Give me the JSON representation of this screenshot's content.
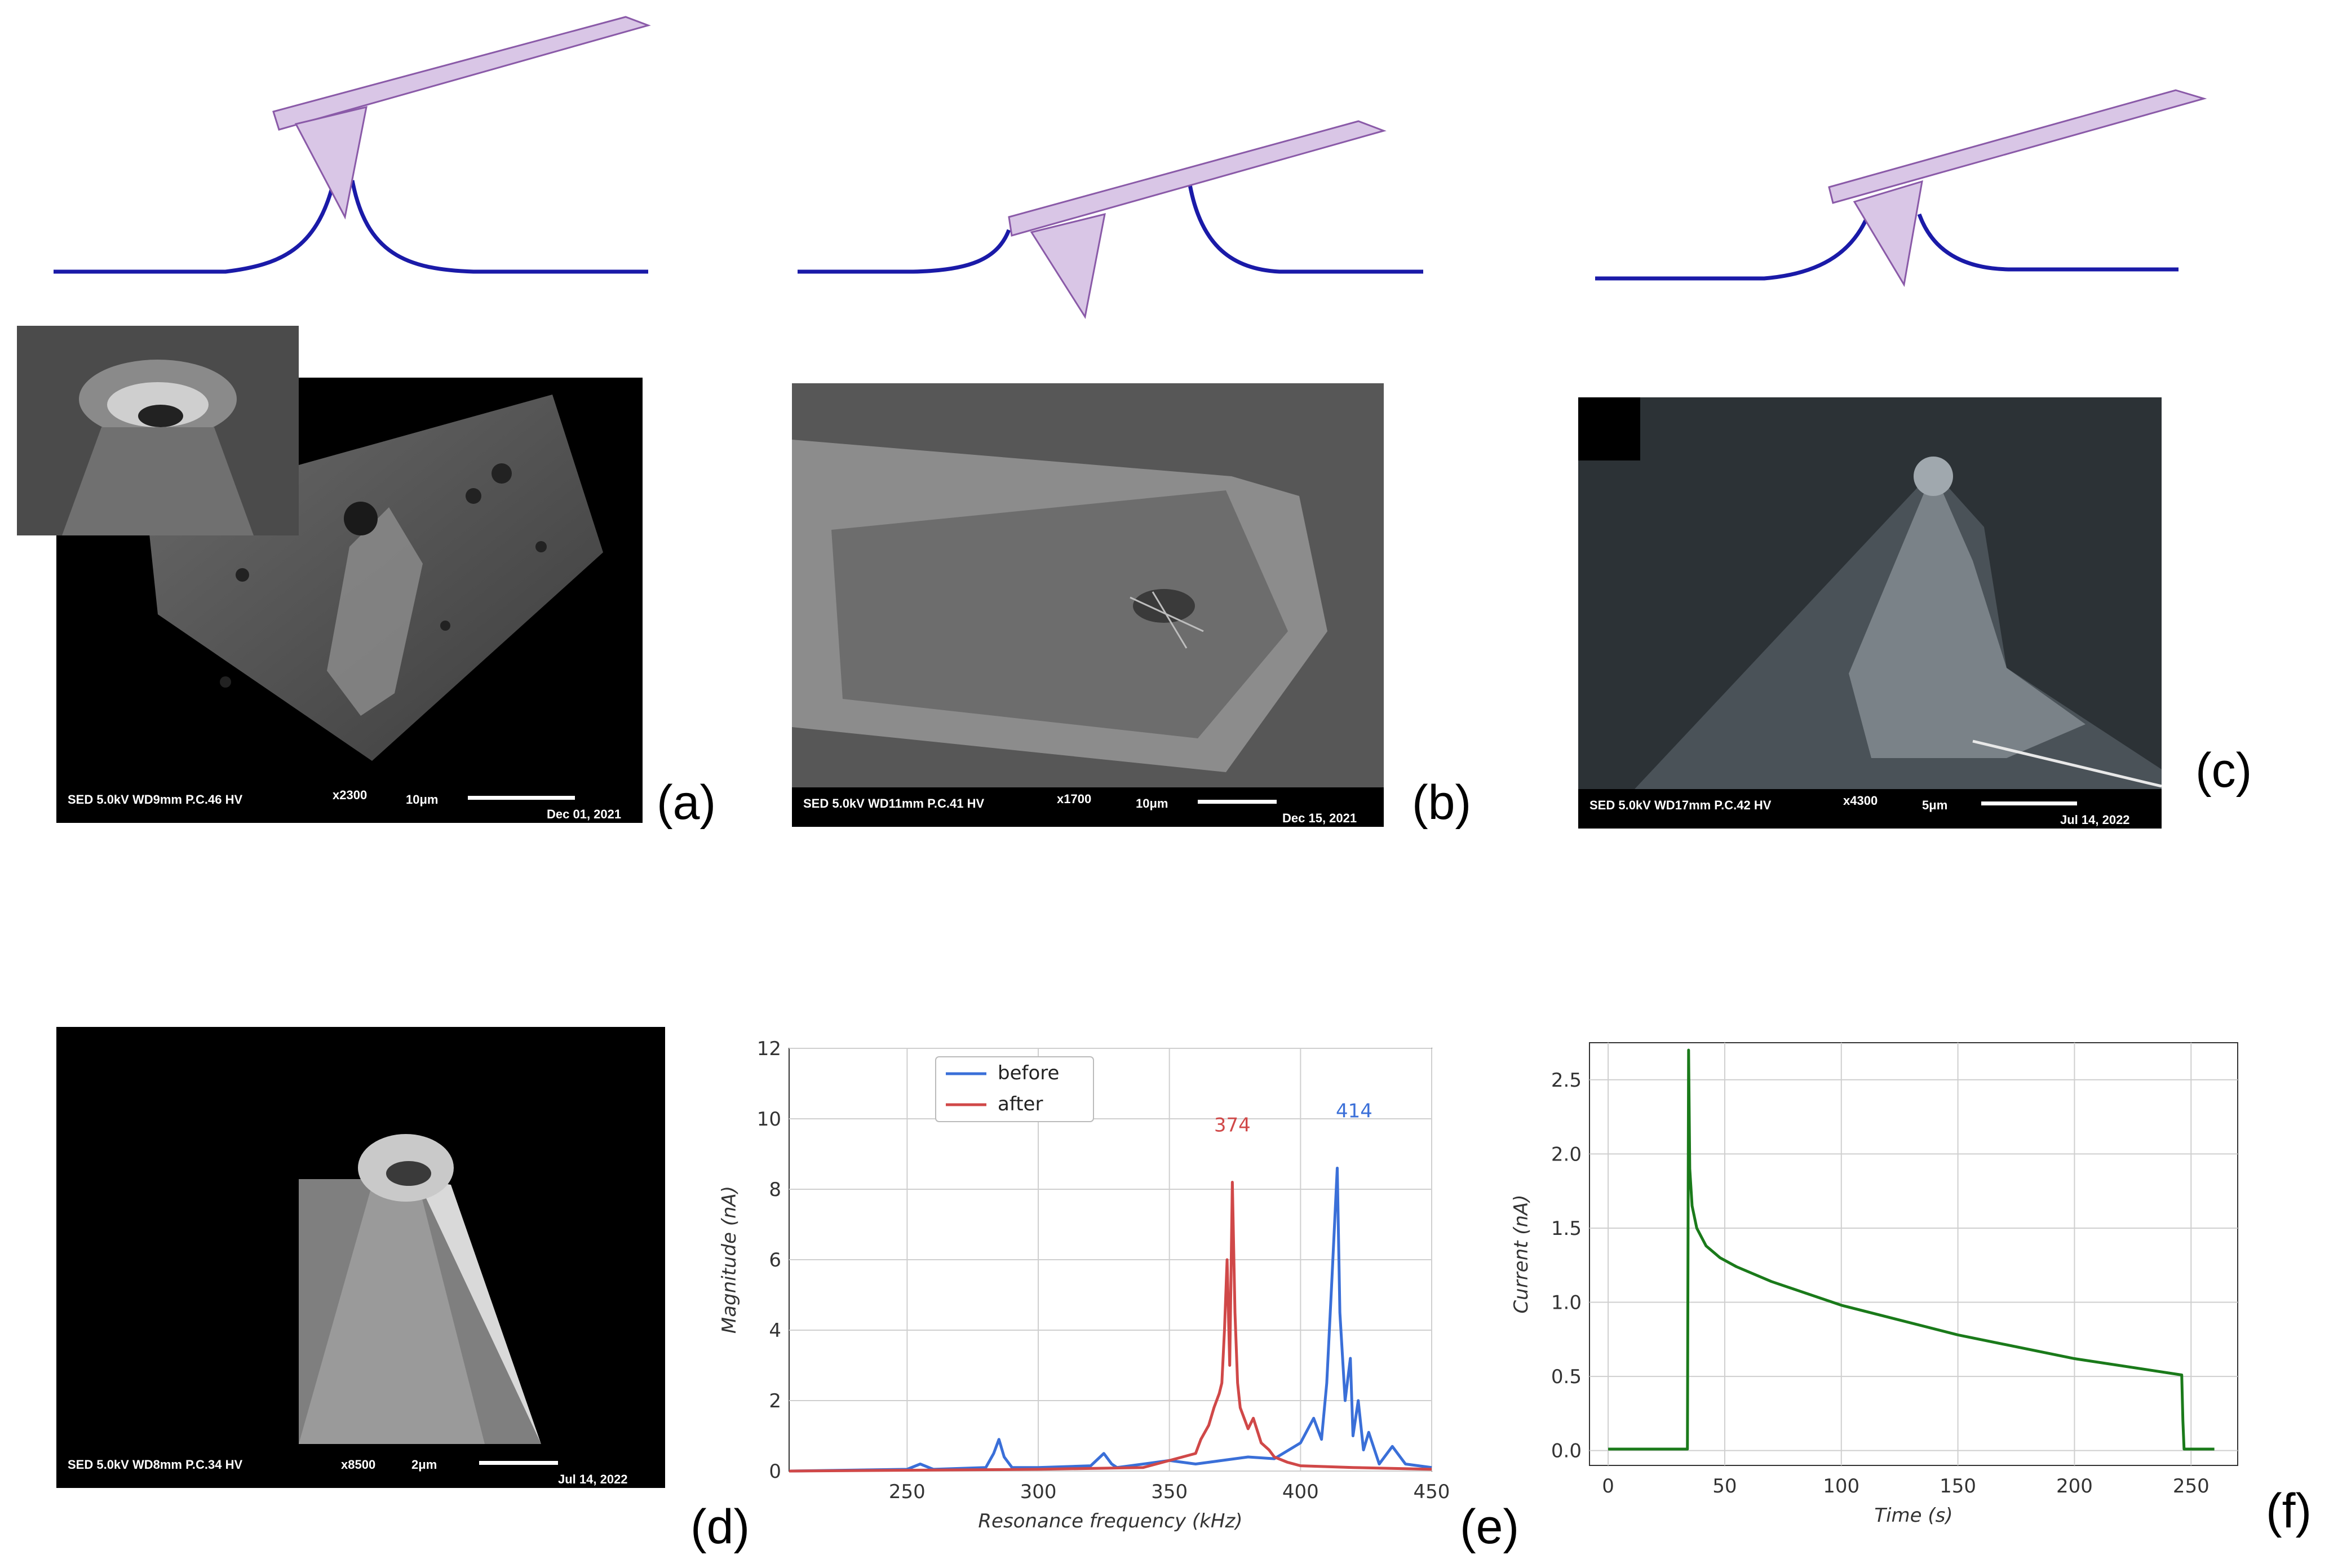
{
  "figure": {
    "panel_labels": [
      "(a)",
      "(b)",
      "(c)",
      "(d)",
      "(e)",
      "(f)"
    ],
    "sem_images": [
      {
        "info": "SED 5.0kV  WD9mm  P.C.46  HV",
        "mag": "x2300",
        "scale": "10μm",
        "date": "Dec 01, 2021"
      },
      {
        "info": "SED 5.0kV  WD11mm P.C.41  HV",
        "mag": "x1700",
        "scale": "10μm",
        "date": "Dec 15, 2021"
      },
      {
        "info": "SED 5.0kV  WD17mm P.C.42  HV",
        "mag": "x4300",
        "scale": "5μm",
        "date": "Jul 14, 2022"
      },
      {
        "info": "SED 5.0kV  WD8mm  P.C.34  HV",
        "mag": "x8500",
        "scale": "2μm",
        "date": "Jul 14, 2022"
      }
    ],
    "colors": {
      "cantilever": "#d9c6e6",
      "surface_line": "#1a1aa8",
      "before": "#3a6fd8",
      "after": "#d04848",
      "current": "#1a7a1a"
    }
  },
  "chart_data": [
    {
      "type": "line",
      "xlabel": "Resonance frequency (kHz)",
      "ylabel": "Magnitude (nA)",
      "xlim": [
        205,
        450
      ],
      "ylim": [
        0,
        12
      ],
      "x_ticks": [
        250,
        300,
        350,
        400,
        450
      ],
      "y_ticks": [
        0,
        2,
        4,
        6,
        8,
        10,
        12
      ],
      "grid": true,
      "legend": "top-left",
      "series": [
        {
          "name": "before",
          "peak_label": "414",
          "x": [
            205,
            250,
            255,
            260,
            280,
            283,
            285,
            287,
            290,
            300,
            320,
            325,
            328,
            330,
            350,
            360,
            370,
            380,
            390,
            400,
            405,
            408,
            410,
            412,
            414,
            415,
            417,
            419,
            420,
            422,
            424,
            426,
            430,
            435,
            440,
            450
          ],
          "y": [
            0,
            0.05,
            0.2,
            0.05,
            0.1,
            0.5,
            0.9,
            0.4,
            0.1,
            0.1,
            0.15,
            0.5,
            0.2,
            0.1,
            0.3,
            0.2,
            0.3,
            0.4,
            0.35,
            0.8,
            1.5,
            0.9,
            2.5,
            5.5,
            8.6,
            4.5,
            2.0,
            3.2,
            1.0,
            2.0,
            0.6,
            1.1,
            0.2,
            0.7,
            0.2,
            0.1
          ]
        },
        {
          "name": "after",
          "peak_label": "374",
          "x": [
            205,
            300,
            340,
            350,
            355,
            360,
            362,
            365,
            367,
            369,
            370,
            371,
            372,
            373,
            374,
            375,
            376,
            377,
            378,
            380,
            382,
            385,
            388,
            390,
            395,
            400,
            420,
            450
          ],
          "y": [
            0,
            0.05,
            0.1,
            0.3,
            0.4,
            0.5,
            0.9,
            1.3,
            1.8,
            2.2,
            2.5,
            4.0,
            6.0,
            3.0,
            8.2,
            4.5,
            2.5,
            1.8,
            1.6,
            1.2,
            1.5,
            0.8,
            0.6,
            0.4,
            0.25,
            0.15,
            0.1,
            0.05
          ]
        }
      ]
    },
    {
      "type": "line",
      "xlabel": "Time (s)",
      "ylabel": "Current (nA)",
      "xlim": [
        -8,
        270
      ],
      "ylim": [
        -0.1,
        2.75
      ],
      "x_ticks": [
        0,
        50,
        100,
        150,
        200,
        250
      ],
      "y_ticks": [
        0.0,
        0.5,
        1.0,
        1.5,
        2.0,
        2.5
      ],
      "grid": true,
      "series": [
        {
          "name": "",
          "x": [
            0,
            34,
            34.5,
            35,
            36,
            38,
            42,
            48,
            55,
            70,
            100,
            150,
            200,
            246,
            246.5,
            247,
            260
          ],
          "y": [
            0.01,
            0.01,
            2.7,
            1.9,
            1.65,
            1.5,
            1.38,
            1.3,
            1.24,
            1.14,
            0.98,
            0.78,
            0.62,
            0.51,
            0.2,
            0.01,
            0.01
          ]
        }
      ]
    }
  ]
}
